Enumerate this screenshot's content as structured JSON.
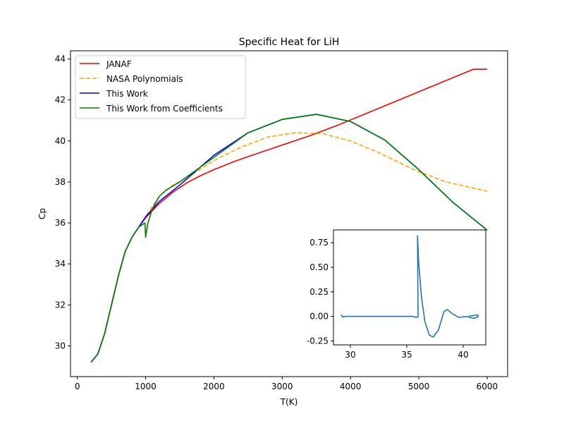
{
  "chart_data": [
    {
      "type": "line",
      "title": "Specific Heat for LiH",
      "xlabel": "T(K)",
      "ylabel": "Cp",
      "xlim": [
        -100,
        6300
      ],
      "ylim": [
        28.5,
        44.4
      ],
      "xticks": [
        0,
        1000,
        2000,
        3000,
        4000,
        5000,
        6000
      ],
      "yticks": [
        30,
        32,
        34,
        36,
        38,
        40,
        42,
        44
      ],
      "legend_position": "upper-left",
      "grid": false,
      "series": [
        {
          "name": "JANAF",
          "color": "#ff0000",
          "style": "solid",
          "x": [
            200,
            300,
            400,
            500,
            600,
            700,
            800,
            900,
            1000,
            1200,
            1400,
            1600,
            1800,
            2000,
            2300,
            2600,
            3000,
            3400,
            3800,
            4200,
            4600,
            5000,
            5400,
            5800,
            6000
          ],
          "y": [
            29.2,
            29.6,
            30.6,
            32.0,
            33.4,
            34.6,
            35.3,
            35.8,
            36.25,
            36.95,
            37.5,
            37.95,
            38.3,
            38.6,
            39.0,
            39.35,
            39.8,
            40.25,
            40.75,
            41.3,
            41.85,
            42.4,
            42.95,
            43.5,
            43.5
          ]
        },
        {
          "name": "NASA Polynomials",
          "color": "#ffa500",
          "style": "dashed",
          "x": [
            200,
            300,
            400,
            500,
            600,
            700,
            800,
            900,
            1000,
            1200,
            1400,
            1600,
            2000,
            2400,
            2800,
            3200,
            3600,
            4000,
            4400,
            4800,
            5000,
            5400,
            5800,
            6000
          ],
          "y": [
            29.2,
            29.6,
            30.6,
            32.0,
            33.4,
            34.6,
            35.3,
            35.8,
            36.3,
            37.3,
            37.85,
            38.2,
            39.05,
            39.7,
            40.2,
            40.4,
            40.35,
            40.0,
            39.45,
            38.8,
            38.5,
            38.0,
            37.7,
            37.55
          ]
        },
        {
          "name": "This Work",
          "color": "#0000ff",
          "style": "solid",
          "x": [
            200,
            300,
            400,
            500,
            600,
            700,
            800,
            900,
            1000,
            1200,
            1500,
            2000,
            2500,
            3000,
            3500,
            4000,
            4500,
            5000,
            5500,
            6000
          ],
          "y": [
            29.2,
            29.6,
            30.6,
            32.0,
            33.4,
            34.6,
            35.3,
            35.8,
            36.3,
            37.05,
            37.85,
            39.3,
            40.4,
            41.05,
            41.3,
            40.95,
            40.05,
            38.6,
            37.0,
            35.65
          ]
        },
        {
          "name": "This Work from Coefficients",
          "color": "#008000",
          "style": "solid",
          "x": [
            200,
            300,
            400,
            500,
            600,
            700,
            800,
            900,
            990,
            1000,
            1030,
            1100,
            1200,
            1300,
            1500,
            2000,
            2500,
            3000,
            3500,
            4000,
            4500,
            5000,
            5500,
            6000
          ],
          "y": [
            29.2,
            29.6,
            30.6,
            32.0,
            33.4,
            34.6,
            35.3,
            35.8,
            36.0,
            35.3,
            35.95,
            36.7,
            37.3,
            37.6,
            38.0,
            39.2,
            40.4,
            41.05,
            41.3,
            40.95,
            40.05,
            38.6,
            37.0,
            35.65
          ]
        }
      ]
    },
    {
      "type": "line",
      "title": "",
      "xlabel": "",
      "ylabel": "",
      "xlim": [
        28.5,
        42.0
      ],
      "ylim": [
        -0.29,
        0.88
      ],
      "xticks": [
        30,
        35,
        40
      ],
      "yticks": [
        -0.25,
        0.0,
        0.25,
        0.5,
        0.75
      ],
      "grid": false,
      "series": [
        {
          "color": "#1f77b4",
          "style": "solid",
          "x": [
            29.2,
            29.3,
            29.6,
            30.6,
            32.0,
            33.4,
            34.6,
            35.3,
            35.6,
            35.8,
            36.0,
            35.95,
            36.0,
            36.05,
            36.3,
            36.6,
            37.0,
            37.35,
            37.8,
            38.3,
            38.6,
            39.0,
            39.6,
            40.0,
            40.5,
            41.0,
            41.3,
            41.35,
            41.0,
            40.5
          ],
          "y": [
            0.02,
            -0.005,
            0.0,
            0.0,
            0.0,
            0.0,
            0.0,
            0.0,
            0.0,
            -0.01,
            -0.005,
            0.82,
            0.7,
            0.55,
            0.2,
            -0.05,
            -0.19,
            -0.21,
            -0.14,
            0.05,
            0.07,
            0.03,
            -0.01,
            -0.005,
            0.0,
            0.01,
            0.015,
            0.0,
            -0.02,
            -0.01
          ]
        }
      ]
    }
  ]
}
